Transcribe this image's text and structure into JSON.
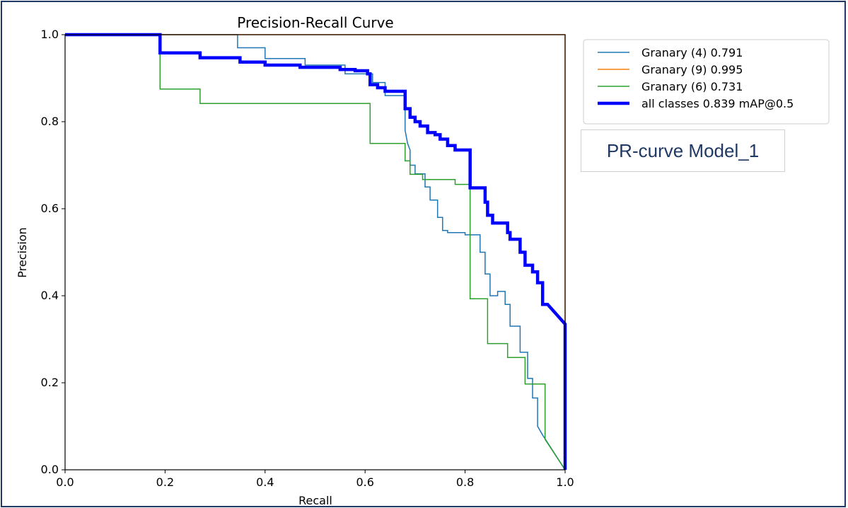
{
  "colors": {
    "frame": "#1f3864",
    "blue": "#1f77b4",
    "orange": "#ff7f0e",
    "green": "#2ca02c",
    "all": "#0000ff"
  },
  "annotation": {
    "text": "PR-curve Model_1"
  },
  "chart_data": {
    "type": "line",
    "title": "Precision-Recall Curve",
    "xlabel": "Recall",
    "ylabel": "Precision",
    "xlim": [
      0,
      1
    ],
    "ylim": [
      0,
      1
    ],
    "xticks": [
      "0.0",
      "0.2",
      "0.4",
      "0.6",
      "0.8",
      "1.0"
    ],
    "yticks": [
      "0.0",
      "0.2",
      "0.4",
      "0.6",
      "0.8",
      "1.0"
    ],
    "legend_position": "top-right (outside plot)",
    "series": [
      {
        "name": "Granary (4) 0.791",
        "color": "#1f77b4",
        "width": 1.5,
        "points": [
          [
            0,
            1
          ],
          [
            0.345,
            1
          ],
          [
            0.345,
            0.97
          ],
          [
            0.4,
            0.97
          ],
          [
            0.4,
            0.945
          ],
          [
            0.48,
            0.945
          ],
          [
            0.48,
            0.93
          ],
          [
            0.56,
            0.93
          ],
          [
            0.56,
            0.91
          ],
          [
            0.615,
            0.91
          ],
          [
            0.615,
            0.89
          ],
          [
            0.64,
            0.89
          ],
          [
            0.64,
            0.86
          ],
          [
            0.68,
            0.86
          ],
          [
            0.68,
            0.78
          ],
          [
            0.685,
            0.75
          ],
          [
            0.69,
            0.735
          ],
          [
            0.69,
            0.7
          ],
          [
            0.7,
            0.7
          ],
          [
            0.7,
            0.68
          ],
          [
            0.72,
            0.68
          ],
          [
            0.72,
            0.65
          ],
          [
            0.73,
            0.65
          ],
          [
            0.73,
            0.62
          ],
          [
            0.745,
            0.62
          ],
          [
            0.745,
            0.58
          ],
          [
            0.755,
            0.58
          ],
          [
            0.755,
            0.55
          ],
          [
            0.765,
            0.55
          ],
          [
            0.765,
            0.545
          ],
          [
            0.8,
            0.545
          ],
          [
            0.8,
            0.54
          ],
          [
            0.83,
            0.54
          ],
          [
            0.83,
            0.5
          ],
          [
            0.84,
            0.5
          ],
          [
            0.84,
            0.45
          ],
          [
            0.85,
            0.45
          ],
          [
            0.85,
            0.4
          ],
          [
            0.865,
            0.4
          ],
          [
            0.865,
            0.41
          ],
          [
            0.88,
            0.41
          ],
          [
            0.88,
            0.38
          ],
          [
            0.89,
            0.38
          ],
          [
            0.89,
            0.33
          ],
          [
            0.91,
            0.33
          ],
          [
            0.91,
            0.27
          ],
          [
            0.925,
            0.27
          ],
          [
            0.925,
            0.21
          ],
          [
            0.935,
            0.21
          ],
          [
            0.935,
            0.165
          ],
          [
            0.945,
            0.165
          ],
          [
            0.945,
            0.1
          ],
          [
            0.955,
            0.08
          ],
          [
            1.0,
            0
          ]
        ]
      },
      {
        "name": "Granary (9) 0.995",
        "color": "#ff7f0e",
        "width": 1.5,
        "points": [
          [
            0,
            1
          ],
          [
            1.0,
            1
          ],
          [
            1.0,
            0
          ]
        ]
      },
      {
        "name": "Granary (6) 0.731",
        "color": "#2ca02c",
        "width": 1.5,
        "points": [
          [
            0,
            1
          ],
          [
            0.19,
            1
          ],
          [
            0.19,
            0.875
          ],
          [
            0.27,
            0.875
          ],
          [
            0.27,
            0.842
          ],
          [
            0.61,
            0.842
          ],
          [
            0.61,
            0.75
          ],
          [
            0.68,
            0.75
          ],
          [
            0.68,
            0.71
          ],
          [
            0.69,
            0.71
          ],
          [
            0.69,
            0.679
          ],
          [
            0.715,
            0.679
          ],
          [
            0.715,
            0.667
          ],
          [
            0.78,
            0.667
          ],
          [
            0.78,
            0.656
          ],
          [
            0.81,
            0.656
          ],
          [
            0.81,
            0.393
          ],
          [
            0.845,
            0.393
          ],
          [
            0.845,
            0.29
          ],
          [
            0.885,
            0.29
          ],
          [
            0.885,
            0.258
          ],
          [
            0.92,
            0.258
          ],
          [
            0.92,
            0.197
          ],
          [
            0.96,
            0.197
          ],
          [
            0.96,
            0.07
          ],
          [
            1.0,
            0
          ]
        ]
      },
      {
        "name": "all classes 0.839 mAP@0.5",
        "color": "#0000ff",
        "width": 4.5,
        "points": [
          [
            0,
            1
          ],
          [
            0.19,
            1
          ],
          [
            0.19,
            0.958
          ],
          [
            0.27,
            0.958
          ],
          [
            0.27,
            0.947
          ],
          [
            0.35,
            0.947
          ],
          [
            0.35,
            0.937
          ],
          [
            0.4,
            0.937
          ],
          [
            0.4,
            0.93
          ],
          [
            0.47,
            0.93
          ],
          [
            0.47,
            0.925
          ],
          [
            0.55,
            0.925
          ],
          [
            0.55,
            0.92
          ],
          [
            0.58,
            0.92
          ],
          [
            0.58,
            0.917
          ],
          [
            0.605,
            0.917
          ],
          [
            0.605,
            0.91
          ],
          [
            0.61,
            0.91
          ],
          [
            0.61,
            0.885
          ],
          [
            0.625,
            0.885
          ],
          [
            0.625,
            0.878
          ],
          [
            0.64,
            0.878
          ],
          [
            0.64,
            0.87
          ],
          [
            0.68,
            0.87
          ],
          [
            0.68,
            0.83
          ],
          [
            0.69,
            0.83
          ],
          [
            0.69,
            0.81
          ],
          [
            0.7,
            0.81
          ],
          [
            0.7,
            0.8
          ],
          [
            0.71,
            0.8
          ],
          [
            0.71,
            0.79
          ],
          [
            0.725,
            0.79
          ],
          [
            0.725,
            0.775
          ],
          [
            0.74,
            0.775
          ],
          [
            0.74,
            0.77
          ],
          [
            0.75,
            0.77
          ],
          [
            0.75,
            0.76
          ],
          [
            0.765,
            0.76
          ],
          [
            0.765,
            0.745
          ],
          [
            0.78,
            0.745
          ],
          [
            0.78,
            0.735
          ],
          [
            0.81,
            0.735
          ],
          [
            0.81,
            0.648
          ],
          [
            0.84,
            0.648
          ],
          [
            0.84,
            0.615
          ],
          [
            0.845,
            0.615
          ],
          [
            0.845,
            0.585
          ],
          [
            0.855,
            0.585
          ],
          [
            0.855,
            0.567
          ],
          [
            0.885,
            0.567
          ],
          [
            0.885,
            0.545
          ],
          [
            0.89,
            0.545
          ],
          [
            0.89,
            0.53
          ],
          [
            0.91,
            0.53
          ],
          [
            0.91,
            0.5
          ],
          [
            0.92,
            0.5
          ],
          [
            0.92,
            0.47
          ],
          [
            0.935,
            0.47
          ],
          [
            0.935,
            0.455
          ],
          [
            0.945,
            0.455
          ],
          [
            0.945,
            0.43
          ],
          [
            0.955,
            0.43
          ],
          [
            0.955,
            0.38
          ],
          [
            0.965,
            0.38
          ],
          [
            1.0,
            0.335
          ],
          [
            1.0,
            0
          ]
        ]
      }
    ]
  }
}
